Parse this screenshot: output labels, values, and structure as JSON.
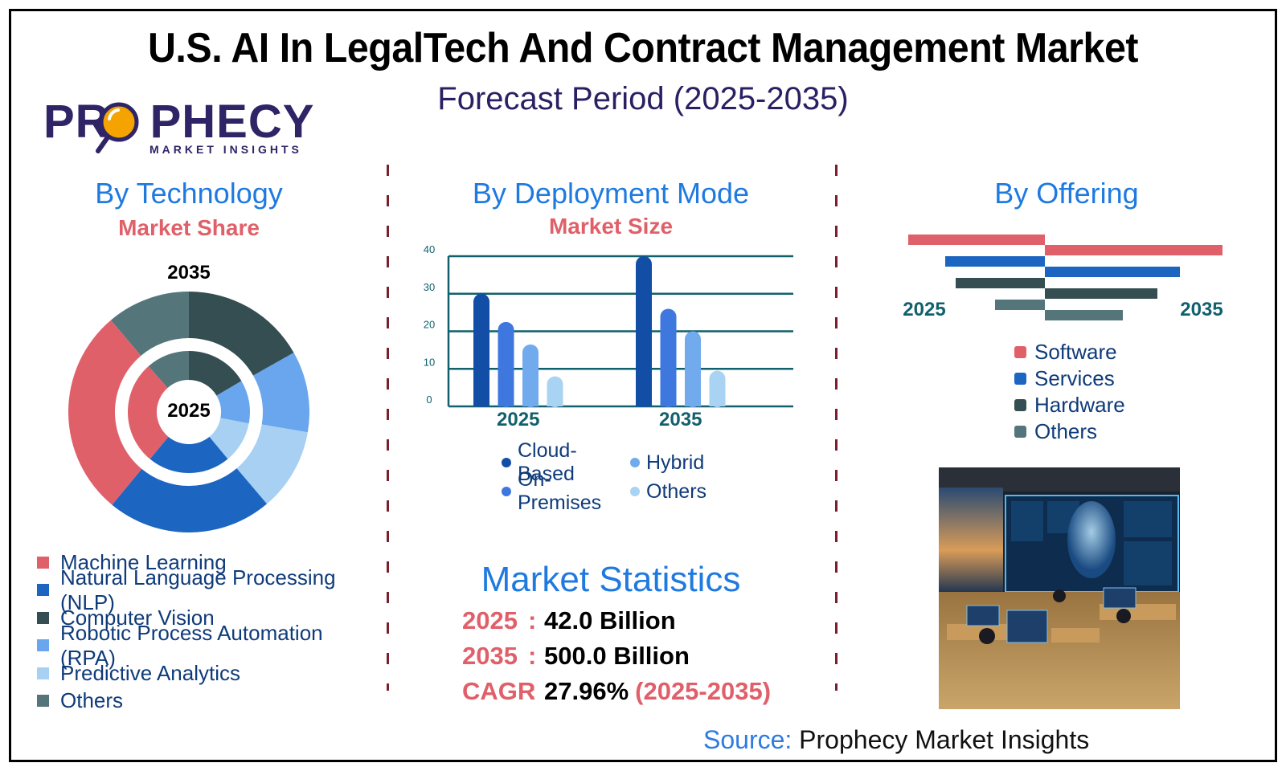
{
  "header": {
    "title": "U.S. AI In LegalTech And Contract Management Market",
    "subtitle": "Forecast Period (2025-2035)"
  },
  "logo": {
    "word_left": "PR",
    "word_right": "PHECY",
    "tagline": "MARKET INSIGHTS",
    "icon": "magnifier-icon",
    "brand_color": "#2e2466",
    "accent_color": "#f5a300"
  },
  "colors": {
    "section_title": "#1f7ae0",
    "section_sub": "#e0606a",
    "divider": "#7a1f2b",
    "axis": "#11606e",
    "legend_text": "#0f3b7a"
  },
  "technology": {
    "title": "By Technology",
    "subtitle": "Market Share",
    "outer_label": "2035",
    "inner_label": "2025"
  },
  "deployment": {
    "title": "By Deployment Mode",
    "subtitle": "Market Size"
  },
  "offering": {
    "title": "By Offering",
    "left_label": "2025",
    "right_label": "2035"
  },
  "stats": {
    "title": "Market Statistics",
    "rows": [
      {
        "key": "2025",
        "sep": ":",
        "value": "42.0 Billion",
        "extra": ""
      },
      {
        "key": "2035",
        "sep": ":",
        "value": "500.0 Billion",
        "extra": ""
      },
      {
        "key": "CAGR",
        "sep": ":",
        "value": "27.96%",
        "extra": "(2025-2035)"
      }
    ]
  },
  "source": {
    "label": "Source:",
    "text": "Prophecy Market Insights"
  },
  "photo": {
    "alt": "AI legal office illustration with holographic AI figure and workers at desks"
  },
  "chart_data": [
    {
      "type": "pie",
      "title": "By Technology — Market Share",
      "subtitle": "Nested donut: inner ring 2025, outer ring 2035",
      "categories": [
        "Machine Learning",
        "Natural Language Processing (NLP)",
        "Computer Vision",
        "Robotic Process Automation (RPA)",
        "Predictive Analytics",
        "Others"
      ],
      "colors": [
        "#e0606a",
        "#1c66c2",
        "#344e52",
        "#6aa6ee",
        "#a8d0f3",
        "#54767a"
      ],
      "draw_order_clockwise_from_top": [
        "Computer Vision",
        "Robotic Process Automation (RPA)",
        "Predictive Analytics",
        "Natural Language Processing (NLP)",
        "Machine Learning",
        "Others"
      ],
      "series": [
        {
          "name": "2025",
          "ring": "inner",
          "values": [
            27.5,
            22.0,
            16.5,
            11.5,
            11.0,
            11.5
          ]
        },
        {
          "name": "2035",
          "ring": "outer",
          "values": [
            27.8,
            22.2,
            16.8,
            10.9,
            11.1,
            11.2
          ]
        }
      ],
      "unit": "%",
      "legend": "bottom-left"
    },
    {
      "type": "bar",
      "title": "By Deployment Mode — Market Size",
      "categories": [
        "2025",
        "2035"
      ],
      "series": [
        {
          "name": "Cloud-Based",
          "color": "#124ea6",
          "values": [
            30,
            40
          ]
        },
        {
          "name": "On-Premises",
          "color": "#3e78de",
          "values": [
            22.5,
            26
          ]
        },
        {
          "name": "Hybrid",
          "color": "#72aaee",
          "values": [
            16.5,
            20
          ]
        },
        {
          "name": "Others",
          "color": "#a9d3f3",
          "values": [
            8,
            9.5
          ]
        }
      ],
      "yticks": [
        0,
        10,
        20,
        30,
        40
      ],
      "ylim": [
        0,
        40
      ],
      "grid": true,
      "xlabel": "",
      "ylabel": "",
      "legend": "bottom"
    },
    {
      "type": "bar",
      "title": "By Offering",
      "orientation": "horizontal-butterfly",
      "categories": [
        "Software",
        "Services",
        "Hardware",
        "Others"
      ],
      "colors": [
        "#e0606a",
        "#1c66c2",
        "#344e52",
        "#54767a"
      ],
      "series": [
        {
          "name": "2025",
          "side": "left",
          "values": [
            170,
            124,
            111,
            62
          ]
        },
        {
          "name": "2035",
          "side": "right",
          "values": [
            221,
            168,
            140,
            97
          ]
        }
      ],
      "unit": "relative (unlabeled axis)",
      "legend": "bottom-right"
    }
  ]
}
